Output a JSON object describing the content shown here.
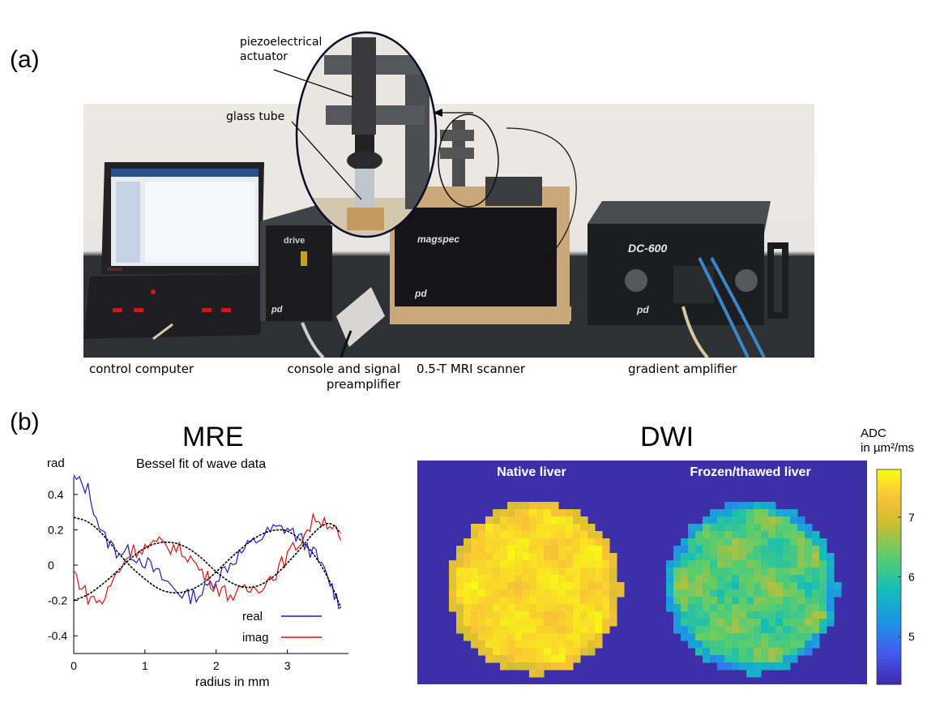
{
  "panel_a": {
    "label": "(a)",
    "callouts": {
      "actuator": "piezoelectrical\nactuator",
      "glass_tube": "glass tube"
    },
    "device_texts": {
      "drive": "drive",
      "magspec": "magspec",
      "dc600": "DC-600",
      "pd": "pd",
      "lenovo": "lenovo"
    },
    "captions": {
      "computer": "control computer",
      "console": "console and signal\npreamplifier",
      "scanner": "0.5-T MRI scanner",
      "amplifier": "gradient amplifier"
    }
  },
  "panel_b": {
    "label": "(b)",
    "mre": {
      "title": "MRE",
      "subtitle": "Bessel fit of wave data",
      "y_unit": "rad",
      "xlabel": "radius in mm",
      "legend": [
        {
          "name": "real",
          "color": "#1c1cc8"
        },
        {
          "name": "imag",
          "color": "#e01010"
        }
      ],
      "fit_color": "#000000"
    },
    "dwi": {
      "title": "DWI",
      "background_color": "#3d2fa8",
      "native_label": "Native liver",
      "frozen_label": "Frozen/thawed liver",
      "colorbar": {
        "title": "ADC\nin µm²/ms",
        "ticks": [
          "7",
          "6",
          "5"
        ],
        "tick_values": [
          7,
          6,
          5
        ],
        "range": [
          4.2,
          7.8
        ],
        "colormap": "parula"
      }
    }
  },
  "chart_data": [
    {
      "type": "line",
      "title": "MRE",
      "subtitle": "Bessel fit of wave data",
      "xlabel": "radius in mm",
      "ylabel": "rad",
      "xlim": [
        0,
        3.8
      ],
      "ylim": [
        -0.5,
        0.5
      ],
      "xticks": [
        "0",
        "1",
        "2",
        "3"
      ],
      "yticks": [
        "0.4",
        "0.2",
        "0",
        "-0.2",
        "-0.4"
      ],
      "x": [
        0,
        0.2,
        0.4,
        0.6,
        0.8,
        1.0,
        1.2,
        1.4,
        1.6,
        1.8,
        2.0,
        2.2,
        2.4,
        2.6,
        2.8,
        3.0,
        3.2,
        3.4,
        3.6,
        3.75
      ],
      "series": [
        {
          "name": "real",
          "values": [
            0.49,
            0.43,
            0.17,
            0.08,
            0.07,
            0.02,
            -0.06,
            -0.13,
            -0.18,
            -0.16,
            -0.07,
            0.01,
            0.09,
            0.15,
            0.2,
            0.21,
            0.14,
            0.05,
            -0.1,
            -0.24
          ]
        },
        {
          "name": "imag",
          "values": [
            -0.04,
            -0.18,
            -0.21,
            -0.05,
            0.08,
            0.1,
            0.12,
            0.1,
            0.06,
            -0.04,
            -0.12,
            -0.17,
            -0.15,
            -0.12,
            -0.06,
            0.05,
            0.15,
            0.27,
            0.24,
            0.14
          ]
        },
        {
          "name": "",
          "values": [
            0.27,
            0.25,
            0.18,
            0.08,
            -0.01,
            -0.08,
            -0.14,
            -0.16,
            -0.15,
            -0.11,
            -0.04,
            0.04,
            0.11,
            0.17,
            0.2,
            0.2,
            0.14,
            0.05,
            -0.09,
            -0.24
          ]
        },
        {
          "name": "",
          "values": [
            -0.2,
            -0.17,
            -0.11,
            -0.04,
            0.04,
            0.1,
            0.13,
            0.13,
            0.1,
            0.04,
            -0.04,
            -0.1,
            -0.13,
            -0.12,
            -0.07,
            0.01,
            0.1,
            0.2,
            0.25,
            0.18
          ]
        }
      ],
      "legend_placement": "bottom-right",
      "grid": false
    },
    {
      "type": "heatmap",
      "title": "DWI",
      "panels": [
        {
          "label": "Native liver",
          "mean_adc": 7.55
        },
        {
          "label": "Frozen/thawed liver",
          "mean_adc": 6.3
        }
      ],
      "colorbar_title": "ADC in µm²/ms",
      "colorbar_ticks": [
        7,
        6,
        5
      ],
      "vrange": [
        4.2,
        7.8
      ]
    }
  ]
}
